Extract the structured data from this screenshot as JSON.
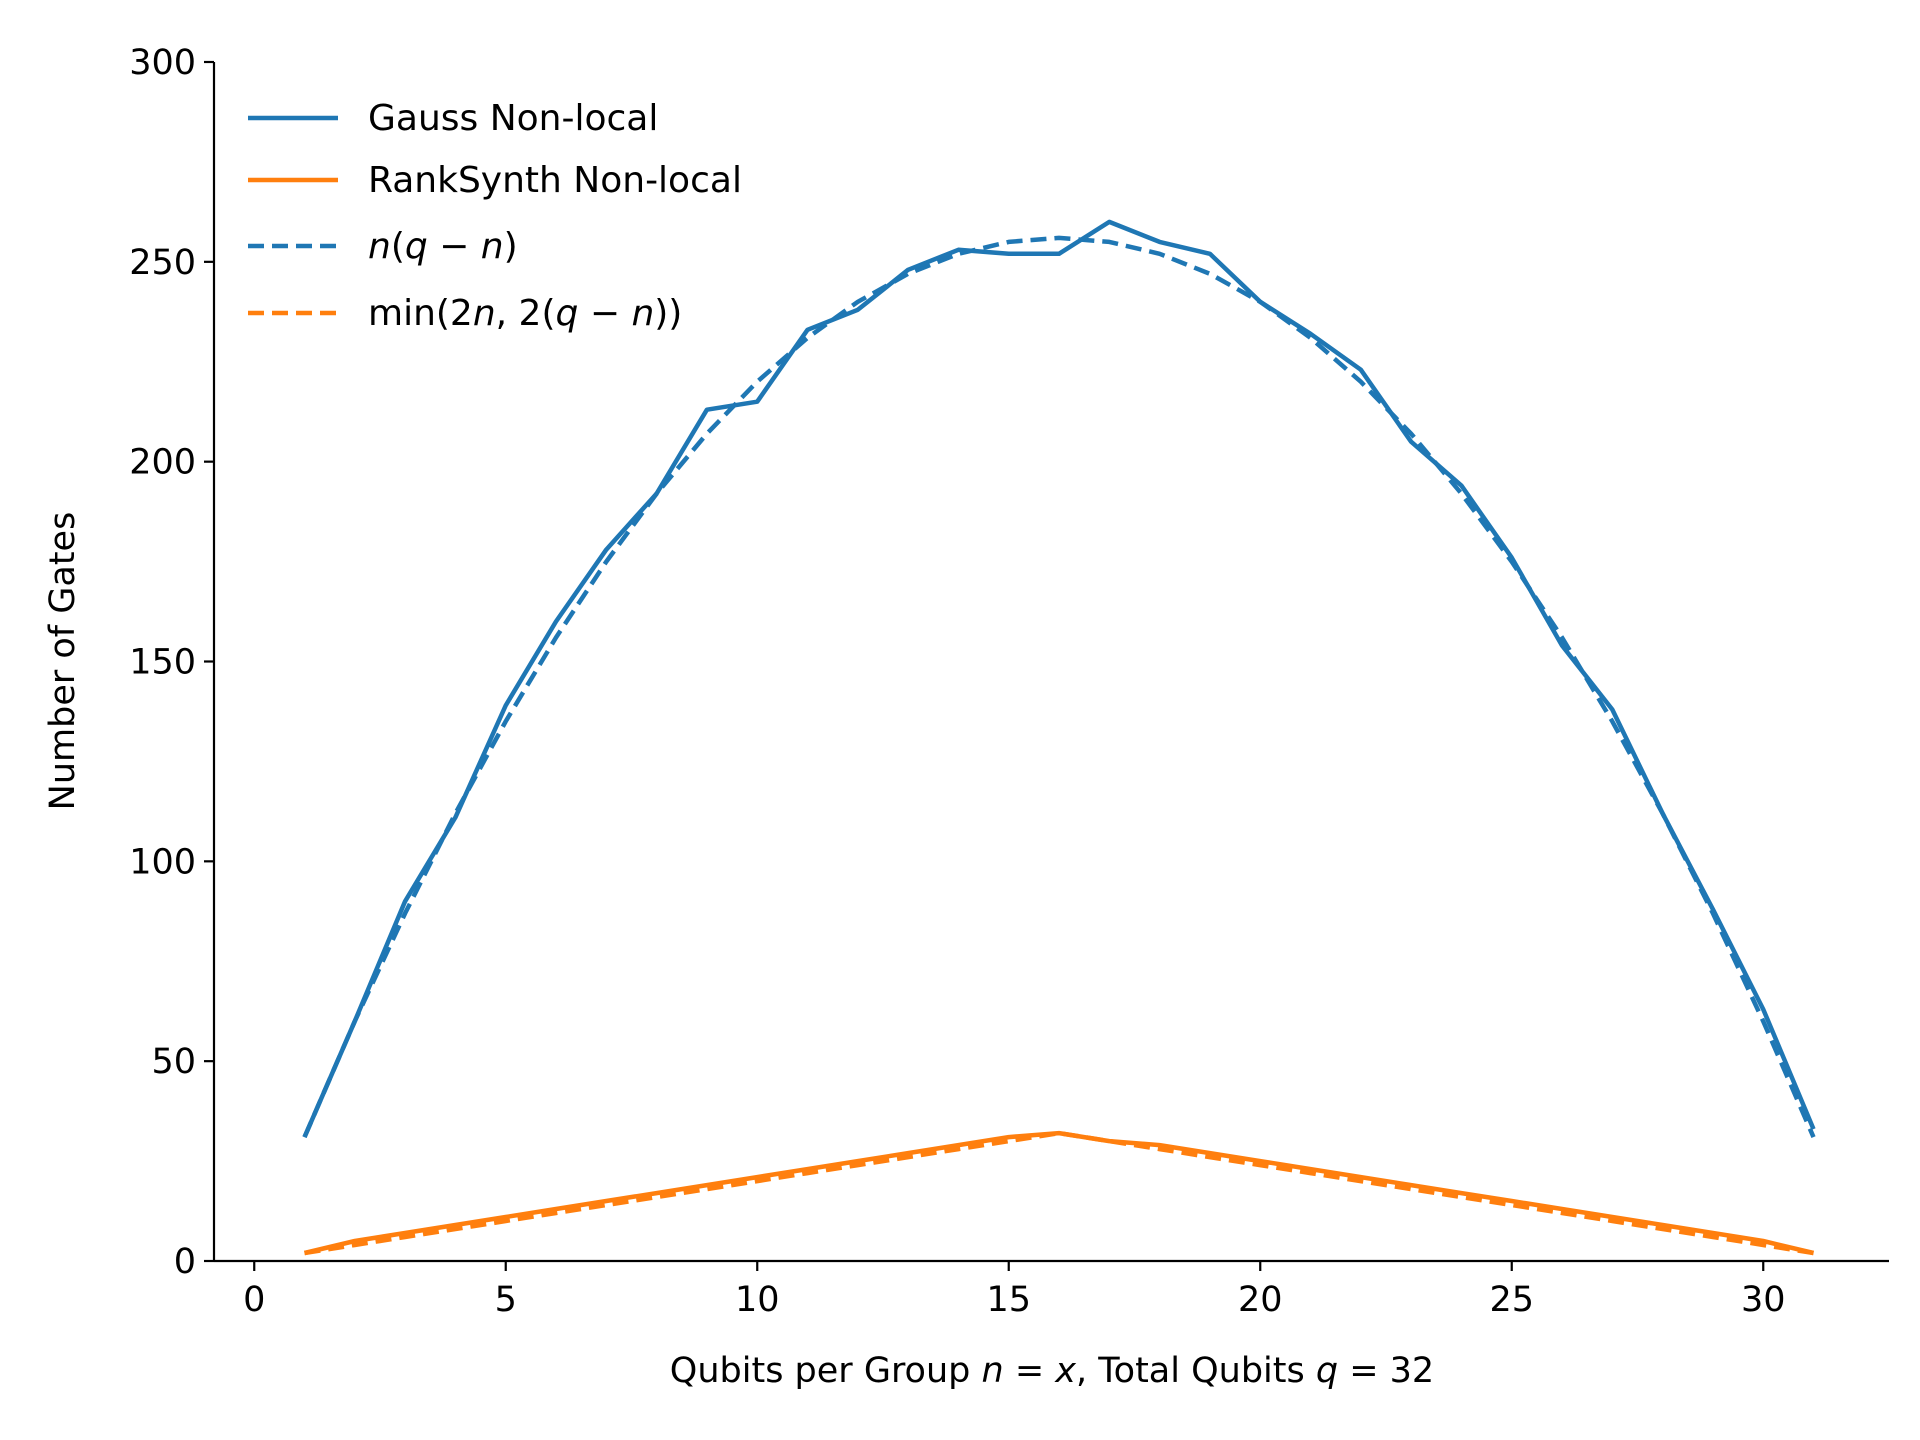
{
  "chart_data": {
    "type": "line",
    "title": "",
    "xlabel": "Qubits per Group n = x, Total Qubits q = 32",
    "ylabel": "Number of Gates",
    "xlim": [
      -0.8,
      32.5
    ],
    "ylim": [
      0,
      300
    ],
    "x_ticks": [
      "0",
      "5",
      "10",
      "15",
      "20",
      "25",
      "30"
    ],
    "y_ticks": [
      "0",
      "50",
      "100",
      "150",
      "200",
      "250",
      "300"
    ],
    "legend_position": "top-left",
    "grid": false,
    "x": [
      1,
      2,
      3,
      4,
      5,
      6,
      7,
      8,
      9,
      10,
      11,
      12,
      13,
      14,
      15,
      16,
      17,
      18,
      19,
      20,
      21,
      22,
      23,
      24,
      25,
      26,
      27,
      28,
      29,
      30,
      31
    ],
    "series": [
      {
        "name": "Gauss Non-local",
        "color": "#1f77b4",
        "style": "solid",
        "values": [
          31,
          60,
          90,
          111,
          139,
          160,
          178,
          192,
          213,
          215,
          233,
          238,
          248,
          253,
          252,
          252,
          260,
          255,
          252,
          240,
          232,
          223,
          205,
          194,
          176,
          154,
          138,
          112,
          88,
          63,
          33
        ]
      },
      {
        "name": "RankSynth Non-local",
        "color": "#ff7f0e",
        "style": "solid",
        "values": [
          2,
          5,
          7,
          9,
          11,
          13,
          15,
          17,
          19,
          21,
          23,
          25,
          27,
          29,
          31,
          32,
          30,
          29,
          27,
          25,
          23,
          21,
          19,
          17,
          15,
          13,
          11,
          9,
          7,
          5,
          2
        ]
      },
      {
        "name": "n(q−n)",
        "color": "#1f77b4",
        "style": "dashed",
        "values": [
          31,
          60,
          87,
          112,
          135,
          156,
          175,
          192,
          207,
          220,
          231,
          240,
          247,
          252,
          255,
          256,
          255,
          252,
          247,
          240,
          231,
          220,
          207,
          192,
          175,
          156,
          135,
          112,
          87,
          60,
          31
        ]
      },
      {
        "name": "min(2n, 2(q−n))",
        "color": "#ff7f0e",
        "style": "dashed",
        "values": [
          2,
          4,
          6,
          8,
          10,
          12,
          14,
          16,
          18,
          20,
          22,
          24,
          26,
          28,
          30,
          32,
          30,
          28,
          26,
          24,
          22,
          20,
          18,
          16,
          14,
          12,
          10,
          8,
          6,
          4,
          2
        ]
      }
    ]
  }
}
